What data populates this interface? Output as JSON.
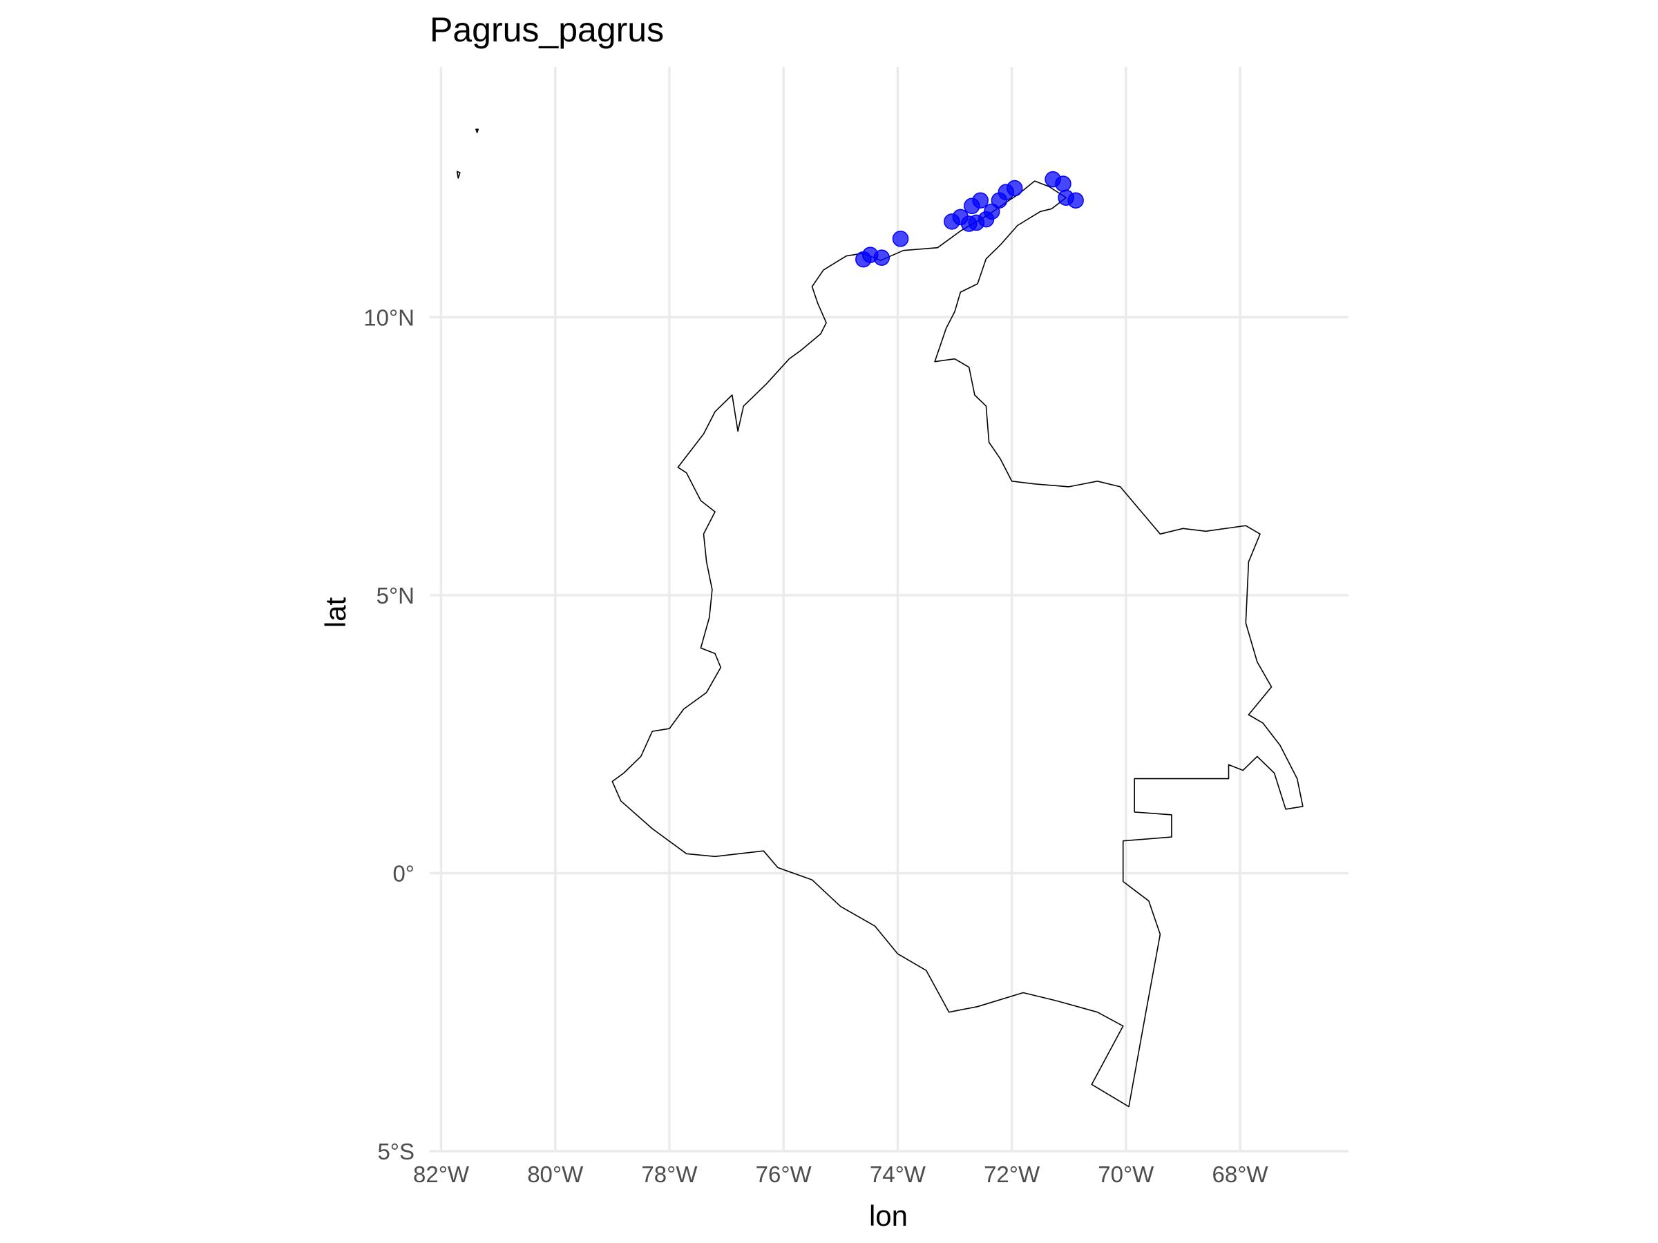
{
  "chart_data": {
    "type": "map-scatter",
    "title": "Pagrus_pagrus",
    "xlabel": "lon",
    "ylabel": "lat",
    "xlim": [
      -82.2,
      -66.1
    ],
    "ylim": [
      -5.0,
      14.5
    ],
    "x_ticks": [
      {
        "value": -82,
        "label": "82°W"
      },
      {
        "value": -80,
        "label": "80°W"
      },
      {
        "value": -78,
        "label": "78°W"
      },
      {
        "value": -76,
        "label": "76°W"
      },
      {
        "value": -74,
        "label": "74°W"
      },
      {
        "value": -72,
        "label": "72°W"
      },
      {
        "value": -70,
        "label": "70°W"
      },
      {
        "value": -68,
        "label": "68°W"
      }
    ],
    "y_ticks": [
      {
        "value": 10,
        "label": "10°N"
      },
      {
        "value": 5,
        "label": "5°N"
      },
      {
        "value": 0,
        "label": "0°"
      },
      {
        "value": -5,
        "label": "5°S"
      }
    ],
    "grid": true,
    "point_color": "#0000ff",
    "outline_color": "#000000",
    "series": [
      {
        "points": [
          {
            "lon": -74.6,
            "lat": 11.04
          },
          {
            "lon": -74.48,
            "lat": 11.12
          },
          {
            "lon": -74.28,
            "lat": 11.07
          },
          {
            "lon": -73.95,
            "lat": 11.41
          },
          {
            "lon": -73.05,
            "lat": 11.72
          },
          {
            "lon": -72.9,
            "lat": 11.8
          },
          {
            "lon": -72.75,
            "lat": 11.68
          },
          {
            "lon": -72.62,
            "lat": 11.7
          },
          {
            "lon": -72.7,
            "lat": 12.0
          },
          {
            "lon": -72.55,
            "lat": 12.1
          },
          {
            "lon": -72.45,
            "lat": 11.76
          },
          {
            "lon": -72.35,
            "lat": 11.9
          },
          {
            "lon": -72.22,
            "lat": 12.1
          },
          {
            "lon": -72.1,
            "lat": 12.25
          },
          {
            "lon": -71.95,
            "lat": 12.32
          },
          {
            "lon": -71.28,
            "lat": 12.48
          },
          {
            "lon": -71.1,
            "lat": 12.4
          },
          {
            "lon": -71.05,
            "lat": 12.15
          },
          {
            "lon": -70.88,
            "lat": 12.1
          }
        ]
      }
    ],
    "outline_main": [
      [
        -71.9,
        12.2
      ],
      [
        -71.6,
        12.45
      ],
      [
        -71.35,
        12.35
      ],
      [
        -71.05,
        12.15
      ],
      [
        -71.3,
        11.95
      ],
      [
        -71.5,
        11.9
      ],
      [
        -71.9,
        11.65
      ],
      [
        -72.2,
        11.3
      ],
      [
        -72.45,
        11.05
      ],
      [
        -72.6,
        10.6
      ],
      [
        -72.9,
        10.45
      ],
      [
        -73.0,
        10.1
      ],
      [
        -73.15,
        9.8
      ],
      [
        -73.35,
        9.2
      ],
      [
        -73.0,
        9.25
      ],
      [
        -72.75,
        9.1
      ],
      [
        -72.65,
        8.6
      ],
      [
        -72.45,
        8.4
      ],
      [
        -72.4,
        7.75
      ],
      [
        -72.2,
        7.45
      ],
      [
        -72.0,
        7.05
      ],
      [
        -71.6,
        7.0
      ],
      [
        -71.0,
        6.95
      ],
      [
        -70.5,
        7.05
      ],
      [
        -70.1,
        6.95
      ],
      [
        -69.4,
        6.1
      ],
      [
        -69.0,
        6.2
      ],
      [
        -68.6,
        6.15
      ],
      [
        -67.9,
        6.25
      ],
      [
        -67.65,
        6.1
      ],
      [
        -67.85,
        5.6
      ],
      [
        -67.9,
        4.5
      ],
      [
        -67.7,
        3.8
      ],
      [
        -67.45,
        3.35
      ],
      [
        -67.85,
        2.85
      ],
      [
        -67.6,
        2.7
      ],
      [
        -67.3,
        2.3
      ],
      [
        -67.0,
        1.7
      ],
      [
        -66.9,
        1.2
      ],
      [
        -67.2,
        1.15
      ],
      [
        -67.4,
        1.8
      ],
      [
        -67.7,
        2.1
      ],
      [
        -67.95,
        1.85
      ],
      [
        -68.2,
        1.95
      ],
      [
        -68.2,
        1.7
      ],
      [
        -69.85,
        1.7
      ],
      [
        -69.85,
        1.1
      ],
      [
        -69.2,
        1.05
      ],
      [
        -69.2,
        0.65
      ],
      [
        -70.05,
        0.58
      ],
      [
        -70.05,
        -0.15
      ],
      [
        -69.6,
        -0.5
      ],
      [
        -69.4,
        -1.1
      ],
      [
        -69.65,
        -2.5
      ],
      [
        -69.95,
        -4.2
      ],
      [
        -70.6,
        -3.8
      ],
      [
        -70.05,
        -2.75
      ],
      [
        -70.5,
        -2.5
      ],
      [
        -71.2,
        -2.3
      ],
      [
        -71.8,
        -2.15
      ],
      [
        -72.6,
        -2.4
      ],
      [
        -73.1,
        -2.5
      ],
      [
        -73.5,
        -1.75
      ],
      [
        -74.0,
        -1.45
      ],
      [
        -74.4,
        -0.95
      ],
      [
        -75.0,
        -0.6
      ],
      [
        -75.5,
        -0.12
      ],
      [
        -76.1,
        0.1
      ],
      [
        -76.35,
        0.4
      ],
      [
        -77.2,
        0.3
      ],
      [
        -77.7,
        0.35
      ],
      [
        -78.3,
        0.8
      ],
      [
        -78.85,
        1.3
      ],
      [
        -79.0,
        1.65
      ],
      [
        -78.8,
        1.8
      ],
      [
        -78.5,
        2.1
      ],
      [
        -78.3,
        2.55
      ],
      [
        -78.0,
        2.6
      ],
      [
        -77.75,
        2.95
      ],
      [
        -77.35,
        3.25
      ],
      [
        -77.1,
        3.7
      ],
      [
        -77.2,
        3.95
      ],
      [
        -77.45,
        4.05
      ],
      [
        -77.3,
        4.6
      ],
      [
        -77.25,
        5.1
      ],
      [
        -77.35,
        5.6
      ],
      [
        -77.4,
        6.1
      ],
      [
        -77.2,
        6.5
      ],
      [
        -77.45,
        6.7
      ],
      [
        -77.7,
        7.2
      ],
      [
        -77.85,
        7.3
      ],
      [
        -77.4,
        7.9
      ],
      [
        -77.2,
        8.3
      ],
      [
        -76.9,
        8.6
      ],
      [
        -76.8,
        7.95
      ],
      [
        -76.7,
        8.4
      ],
      [
        -76.3,
        8.8
      ],
      [
        -75.9,
        9.25
      ],
      [
        -75.7,
        9.4
      ],
      [
        -75.35,
        9.7
      ],
      [
        -75.25,
        9.9
      ],
      [
        -75.4,
        10.25
      ],
      [
        -75.5,
        10.55
      ],
      [
        -75.3,
        10.85
      ],
      [
        -74.9,
        11.1
      ],
      [
        -74.6,
        11.15
      ],
      [
        -74.3,
        11.02
      ],
      [
        -73.9,
        11.2
      ],
      [
        -73.3,
        11.25
      ],
      [
        -72.9,
        11.55
      ],
      [
        -72.4,
        11.85
      ],
      [
        -72.05,
        12.1
      ],
      [
        -71.9,
        12.2
      ]
    ],
    "outline_islands": [
      [
        [
          -81.7,
          12.5
        ],
        [
          -81.67,
          12.6
        ],
        [
          -81.72,
          12.62
        ],
        [
          -81.7,
          12.5
        ]
      ],
      [
        [
          -81.37,
          13.32
        ],
        [
          -81.35,
          13.38
        ],
        [
          -81.39,
          13.38
        ],
        [
          -81.37,
          13.32
        ]
      ]
    ]
  }
}
